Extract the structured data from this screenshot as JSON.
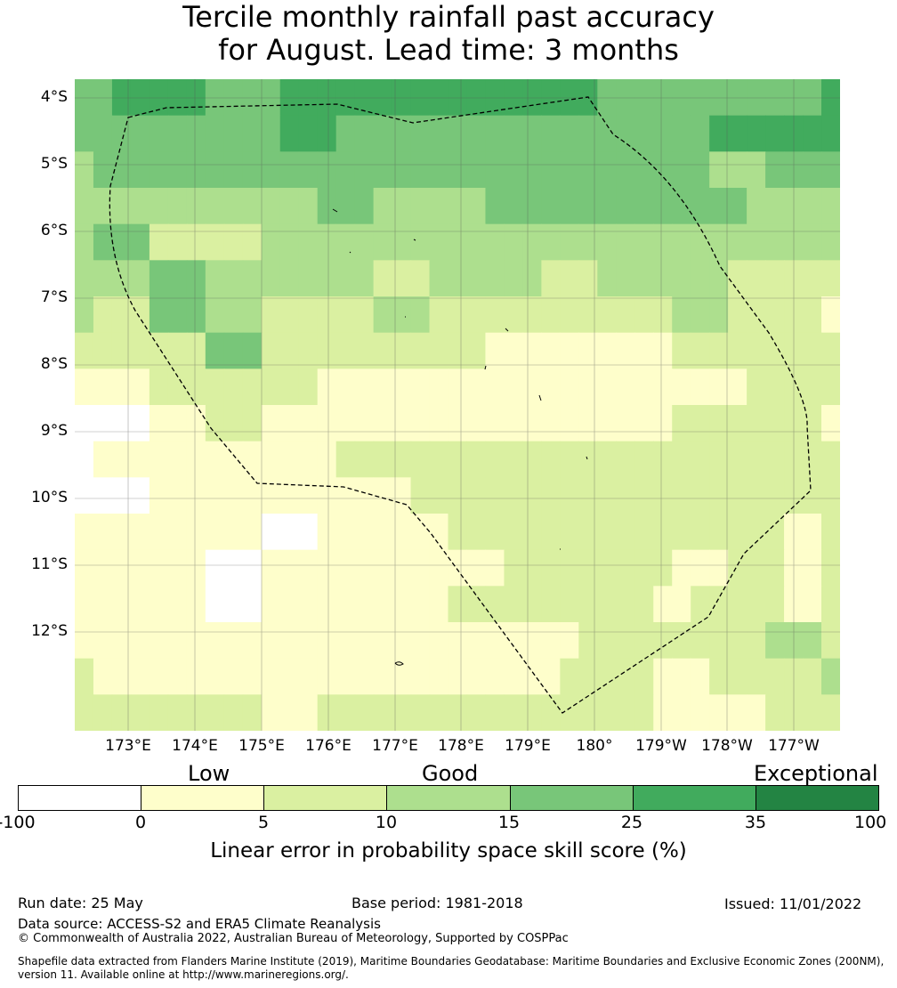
{
  "title": {
    "line1": "Tercile monthly rainfall past accuracy",
    "line2": "for August. Lead time: 3 months"
  },
  "map": {
    "lat_labels": [
      "4°S",
      "5°S",
      "6°S",
      "7°S",
      "8°S",
      "9°S",
      "10°S",
      "11°S",
      "12°S"
    ],
    "lon_labels": [
      "173°E",
      "174°E",
      "175°E",
      "176°E",
      "177°E",
      "178°E",
      "179°E",
      "180°",
      "179°W",
      "178°W",
      "177°W"
    ],
    "colors": {
      "w": "#ffffff",
      "y": "#fefecb",
      "g1": "#daf0a1",
      "g2": "#addf8e",
      "g3": "#78c679",
      "g4": "#41ab5d",
      "g5": "#238443"
    },
    "grid_rows": [
      "g3 g3 g4 g4 g4 g4 g4 g3 g3 g3 g3 g4 g4 g4 g4 g4 g4 g4 g4 g4 g4 g4 g4 g4 g4 g4 g4 g4 g3 g3 g3 g3 g3 g3 g3 g3 g3 g3 g3 g3 g4",
      "g3 g3 g3 g3 g3 g3 g3 g3 g3 g3 g3 g4 g4 g4 g3 g3 g3 g3 g3 g3 g3 g3 g3 g3 g3 g3 g3 g3 g3 g3 g3 g3 g3 g3 g4 g4 g4 g4 g4 g4 g4",
      "g2 g3 g3 g3 g3 g3 g3 g3 g3 g3 g3 g3 g3 g3 g3 g3 g3 g3 g3 g3 g3 g3 g3 g3 g3 g3 g3 g3 g3 g3 g3 g3 g3 g3 g2 g2 g2 g3 g3 g3 g3",
      "g2 g2 g2 g2 g2 g2 g2 g2 g2 g2 g2 g2 g2 g3 g3 g3 g2 g2 g2 g2 g2 g2 g3 g3 g3 g3 g3 g3 g3 g3 g3 g3 g3 g3 g3 g3 g2 g2 g2 g2 g2",
      "g2 g3 g3 g3 g1 g1 g1 g1 g1 g1 g2 g2 g2 g2 g2 g2 g2 g2 g2 g2 g2 g2 g2 g2 g2 g2 g2 g2 g2 g2 g2 g2 g2 g2 g2 g2 g2 g2 g2 g2 g2",
      "g2 g2 g2 g2 g3 g3 g3 g2 g2 g2 g2 g2 g2 g2 g2 g2 g1 g1 g1 g2 g2 g2 g2 g2 g2 g1 g1 g1 g2 g2 g2 g2 g2 g2 g2 g1 g1 g1 g1 g1 g1",
      "g2 g1 g1 g1 g3 g3 g3 g2 g2 g2 g1 g1 g1 g1 g1 g1 g2 g2 g2 g1 g1 g1 g1 g1 g1 g1 g1 g1 g1 g1 g1 g1 g2 g2 g2 g1 g1 g1 g1 g1 y",
      "g1 g1 g1 g1 g1 g1 g1 g3 g3 g3 g1 g1 g1 g1 g1 g1 g1 g1 g1 g1 g1 g1 y y y y y y y y y y g1 g1 g1 g1 g1 g1 g1 g1 g1",
      "y y y y g1 g1 g1 g1 g1 g1 g1 g1 g1 y y y y y y y y y y y y y y y y y y y y y y y g1 g1 g1 g1 g1",
      "w w w w y y y g1 g1 g1 y y y y y y y y y y y y y y y y y y y y y y g1 g1 g1 g1 g1 g1 g1 g1 y",
      "w y y y y y y y y y y y y y g1 g1 g1 g1 g1 g1 g1 g1 g1 g1 g1 g1 g1 g1 g1 g1 g1 g1 g1 g1 g1 g1 g1 g1 g1 g1 g1",
      "w w w w y y y y y y y y y y y y y y g1 g1 g1 g1 g1 g1 g1 g1 g1 g1 g1 g1 g1 g1 g1 g1 g1 g1 g1 g1 g1 g1 g1",
      "y y y y y y y y y y w w w y y y y y y y g1 g1 g1 g1 g1 g1 g1 g1 g1 g1 g1 g1 g1 g1 g1 g1 g1 g1 y y g1",
      "y y y y y y y w w w y y y y y y y y y y y y y g1 g1 g1 g1 g1 g1 g1 g1 g1 y y y g1 g1 g1 y y g1",
      "y y y y y y y w w w y y y y y y y y y y g1 g1 g1 g1 g1 g1 g1 g1 g1 g1 g1 y y g1 g1 g1 g1 g1 y y g1",
      "y y y y y y y y y y y y y y y y y y y y y y y y y y y g1 g1 g1 g1 g1 g1 g1 g1 g1 g1 g2 g2 g2 g1",
      "g1 y y y y y y y y y y y y y y y y y y y y y y y y y g1 g1 g1 g1 g1 y y y g1 g1 g1 g1 g1 g1 g2",
      "g1 g1 g1 g1 g1 g1 g1 g1 g1 g1 y y y g1 g1 g1 g1 g1 g1 g1 g1 g1 g1 g1 g1 g1 g1 g1 g1 g1 g1 y y y y y y g1 g1 g1 g1"
    ]
  },
  "legend": {
    "categories": [
      "Low",
      "Good",
      "Exceptional"
    ],
    "ticks": [
      "-100",
      "0",
      "5",
      "10",
      "15",
      "25",
      "35",
      "100"
    ],
    "label": "Linear error in probability space skill score (%)"
  },
  "footer": {
    "run_date": "Run date: 25 May",
    "base_period": "Base period: 1981-2018",
    "issued": "Issued: 11/01/2022",
    "data_source": "Data source: ACCESS-S2 and ERA5 Climate Reanalysis",
    "copyright": "© Commonwealth of Australia 2022, Australian Bureau of Meteorology, Supported by COSPPac",
    "shapefile_line1": "Shapefile data extracted from Flanders Marine Institute (2019), Maritime Boundaries Geodatabase: Maritime Boundaries and Exclusive Economic Zones (200NM),",
    "shapefile_line2": "version 11. Available online at http://www.marineregions.org/."
  }
}
